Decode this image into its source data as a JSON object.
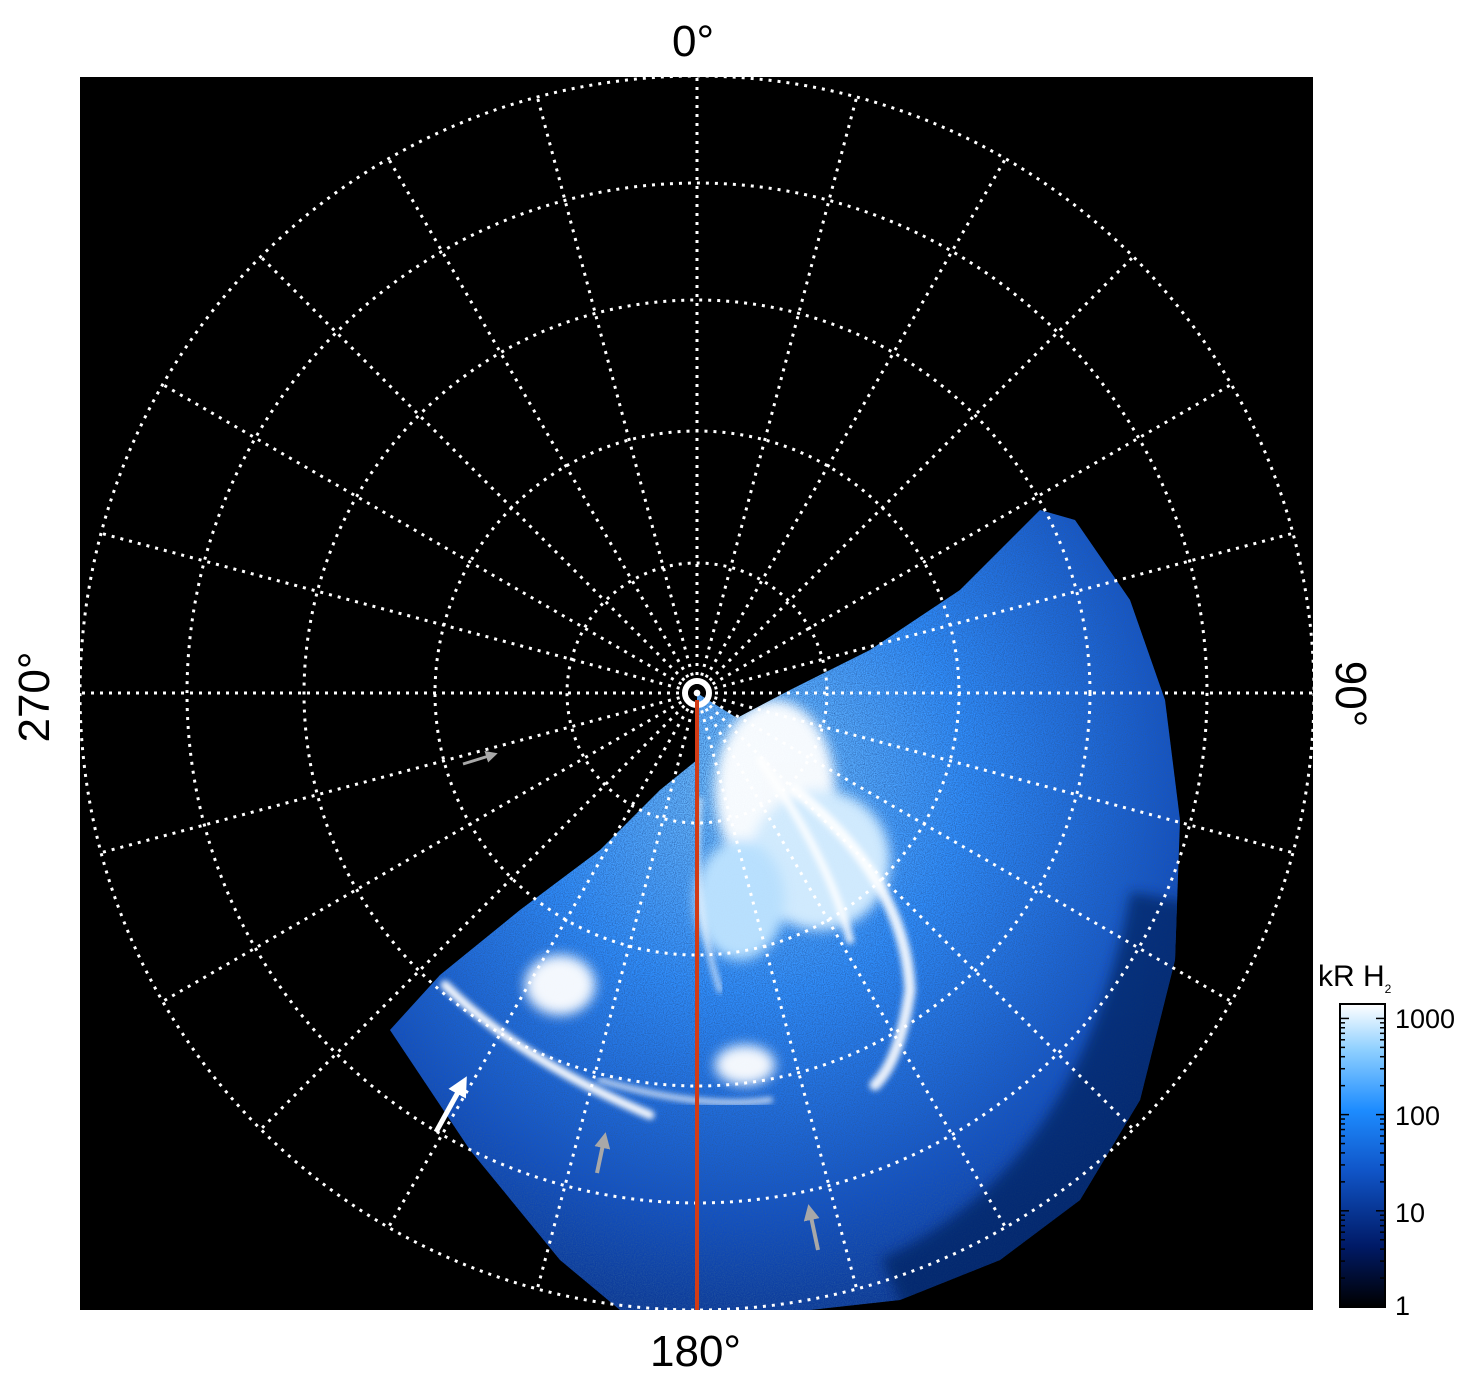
{
  "figure": {
    "labels": {
      "top": "0°",
      "bottom": "180°",
      "left": "270°",
      "right": "90°"
    },
    "colorbar": {
      "title": "kR H",
      "title_sub": "2",
      "ticks": [
        "1000",
        "100",
        "10",
        "1"
      ],
      "scale": "log",
      "colors": [
        "#000000",
        "#001a66",
        "#1055c8",
        "#1d8cff",
        "#8fd0ff",
        "#ffffff"
      ]
    },
    "colors": {
      "background": "#000000",
      "grid": "#ffffff",
      "meridian": "#d23c16",
      "aurora_bright": "#ffffff",
      "aurora_mid": "#3a9cff",
      "aurora_dim": "#0b3fa8",
      "arrow_white": "#ffffff",
      "arrow_gray": "#a8a8a8"
    },
    "grid": {
      "meridian_step_deg": 15,
      "circles": 5
    }
  }
}
